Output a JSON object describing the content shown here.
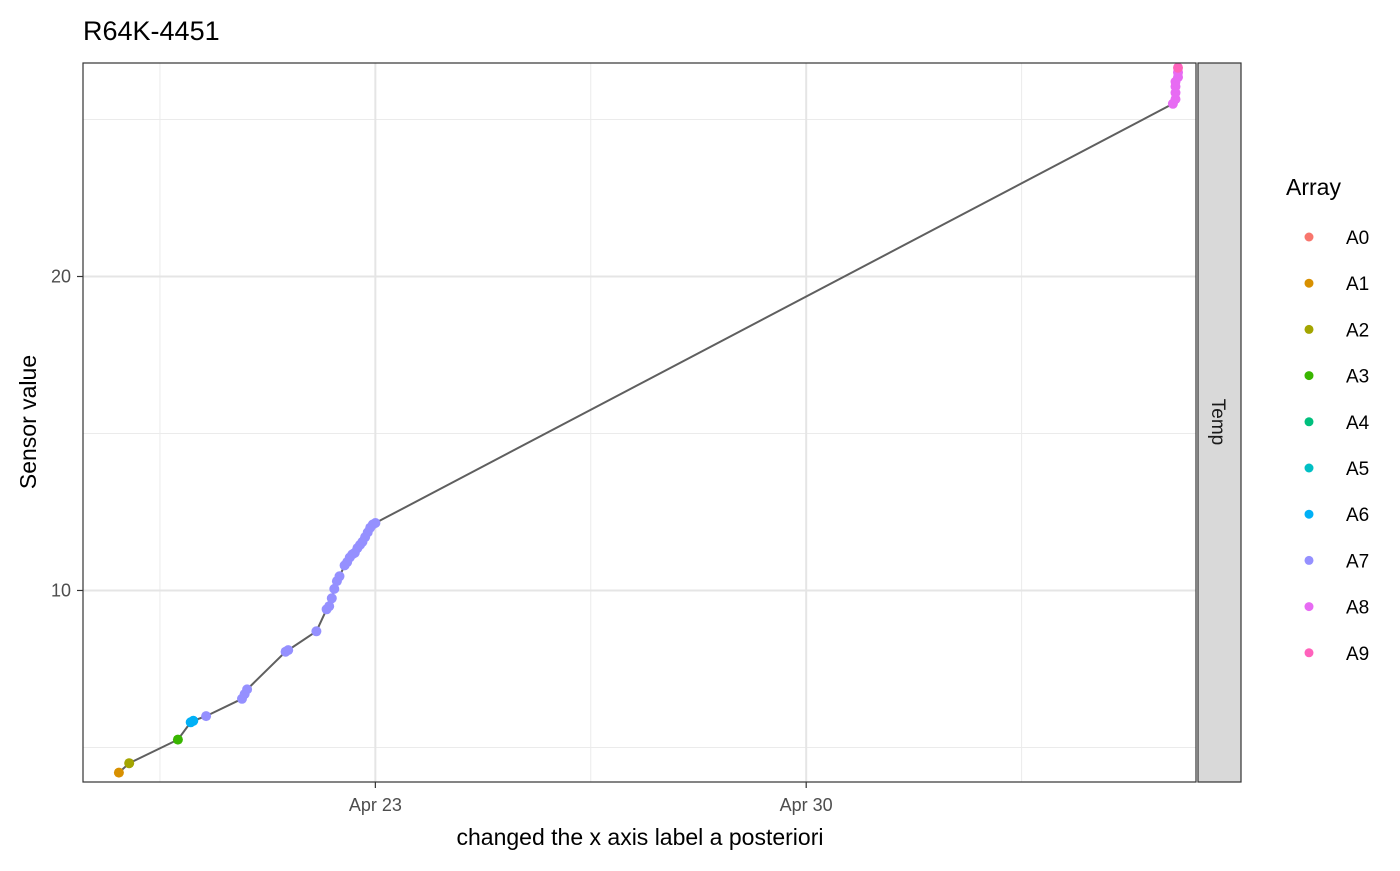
{
  "chart_data": {
    "type": "scatter",
    "title": "R64K-4451",
    "xlabel": "changed the x axis label a posteriori",
    "ylabel": "Sensor value",
    "facet_label": "Temp",
    "legend_title": "Array",
    "legend_position": "right",
    "grid": true,
    "x_range": [
      "2023-04-18T06:00",
      "2023-05-06T08:00"
    ],
    "ylim": [
      3.9,
      26.8
    ],
    "x_ticks": [
      {
        "x": "2023-04-23T00:00",
        "label": "Apr 23"
      },
      {
        "x": "2023-04-30T00:00",
        "label": "Apr 30"
      }
    ],
    "y_ticks": [
      {
        "value": 10,
        "label": "10"
      },
      {
        "value": 20,
        "label": "20"
      }
    ],
    "legend": [
      {
        "label": "A0",
        "color": "#F8766D"
      },
      {
        "label": "A1",
        "color": "#D89000"
      },
      {
        "label": "A2",
        "color": "#A3A500"
      },
      {
        "label": "A3",
        "color": "#39B600"
      },
      {
        "label": "A4",
        "color": "#00BF7D"
      },
      {
        "label": "A5",
        "color": "#00BFC4"
      },
      {
        "label": "A6",
        "color": "#00B0F6"
      },
      {
        "label": "A7",
        "color": "#9590FF"
      },
      {
        "label": "A8",
        "color": "#E76BF3"
      },
      {
        "label": "A9",
        "color": "#FF62BC"
      }
    ],
    "line_color": "#5f5f5f",
    "series": [
      {
        "name": "A1",
        "points": [
          [
            "2023-04-18T20:00",
            4.2
          ]
        ]
      },
      {
        "name": "A2",
        "points": [
          [
            "2023-04-19T00:00",
            4.5
          ]
        ]
      },
      {
        "name": "A3",
        "points": [
          [
            "2023-04-19T19:00",
            5.25
          ]
        ]
      },
      {
        "name": "A6",
        "points": [
          [
            "2023-04-20T00:00",
            5.8
          ],
          [
            "2023-04-20T01:00",
            5.85
          ]
        ]
      },
      {
        "name": "A7",
        "points": [
          [
            "2023-04-20T06:00",
            6.0
          ],
          [
            "2023-04-20T20:00",
            6.55
          ],
          [
            "2023-04-20T21:00",
            6.7
          ],
          [
            "2023-04-20T22:00",
            6.85
          ],
          [
            "2023-04-21T13:00",
            8.05
          ],
          [
            "2023-04-21T14:00",
            8.1
          ],
          [
            "2023-04-22T01:00",
            8.7
          ],
          [
            "2023-04-22T05:00",
            9.4
          ],
          [
            "2023-04-22T06:00",
            9.5
          ],
          [
            "2023-04-22T07:00",
            9.75
          ],
          [
            "2023-04-22T08:00",
            10.05
          ],
          [
            "2023-04-22T09:00",
            10.3
          ],
          [
            "2023-04-22T10:00",
            10.45
          ],
          [
            "2023-04-22T12:00",
            10.8
          ],
          [
            "2023-04-22T13:00",
            10.9
          ],
          [
            "2023-04-22T14:00",
            11.05
          ],
          [
            "2023-04-22T15:00",
            11.15
          ],
          [
            "2023-04-22T16:00",
            11.2
          ],
          [
            "2023-04-22T17:00",
            11.35
          ],
          [
            "2023-04-22T18:00",
            11.45
          ],
          [
            "2023-04-22T19:00",
            11.55
          ],
          [
            "2023-04-22T20:00",
            11.7
          ],
          [
            "2023-04-22T21:00",
            11.85
          ],
          [
            "2023-04-22T22:00",
            12.0
          ],
          [
            "2023-04-22T23:00",
            12.1
          ],
          [
            "2023-04-23T00:00",
            12.15
          ]
        ]
      },
      {
        "name": "A8",
        "points": [
          [
            "2023-05-05T23:00",
            25.5
          ],
          [
            "2023-05-06T00:00",
            25.65
          ],
          [
            "2023-05-06T00:00",
            25.85
          ],
          [
            "2023-05-06T00:00",
            26.05
          ],
          [
            "2023-05-06T00:00",
            26.2
          ],
          [
            "2023-05-06T01:00",
            26.35
          ],
          [
            "2023-05-06T01:00",
            26.5
          ]
        ]
      },
      {
        "name": "A9",
        "points": [
          [
            "2023-05-06T01:00",
            26.65
          ]
        ]
      }
    ]
  }
}
